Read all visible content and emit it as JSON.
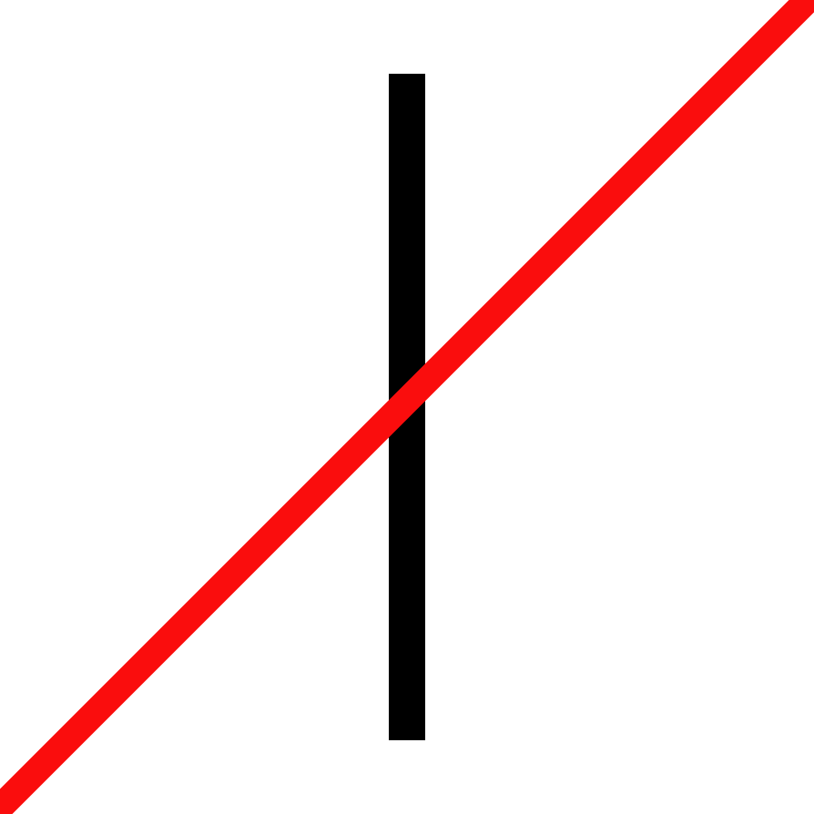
{
  "colors": {
    "background": "#ffffff",
    "vertical_bar": "#000000",
    "diagonal_line": "#fa0d0d"
  },
  "shapes": [
    "vertical-bar",
    "diagonal-line"
  ]
}
